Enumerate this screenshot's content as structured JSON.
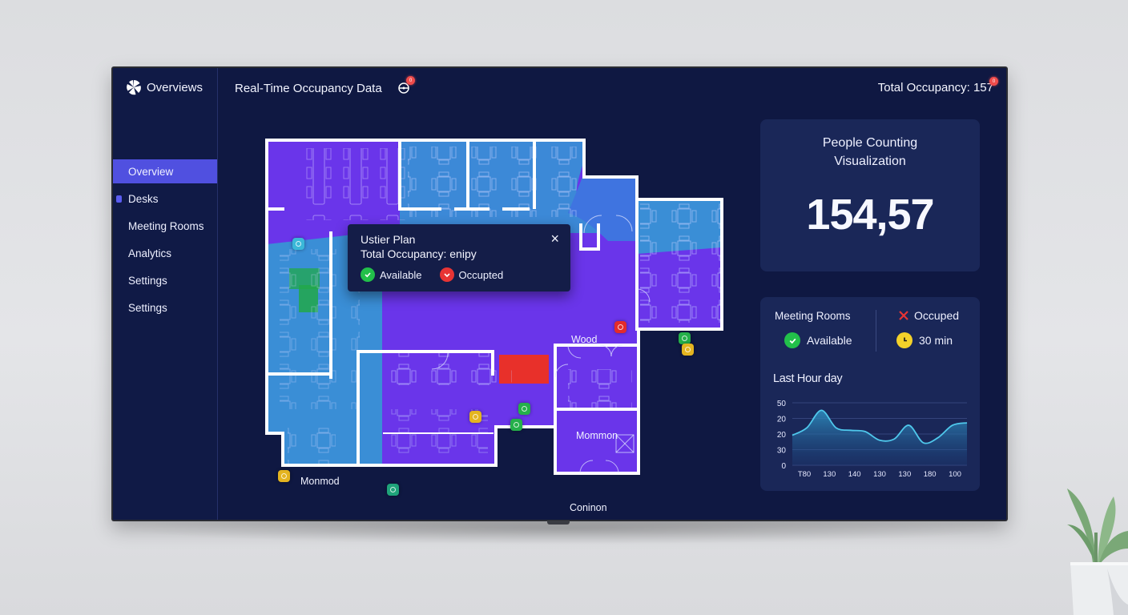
{
  "sidebar": {
    "brand": "Overviews",
    "brand_icon": "pinwheel-logo-icon",
    "items": [
      {
        "label": "Overview",
        "active": true
      },
      {
        "label": "Desks",
        "active": false,
        "marker": true
      },
      {
        "label": "Meeting Rooms",
        "active": false
      },
      {
        "label": "Analytics",
        "active": false
      },
      {
        "label": "Settings",
        "active": false
      },
      {
        "label": "Settings",
        "active": false
      }
    ]
  },
  "header": {
    "title": "Real-Time Occupancy Data",
    "icon": "target-icon",
    "notification_badge": "0",
    "total_occupancy": "Total Occupancy: 157",
    "total_badge": "0"
  },
  "floorplan": {
    "room_labels": [
      "Wood",
      "Mommon",
      "Monmod",
      "Coninon"
    ],
    "zone_colors": {
      "purple": "#6a35ea",
      "blue": "#3a8ed6",
      "red": "#e8302a",
      "green": "#22a84a"
    },
    "markers": [
      {
        "status": "teal",
        "color": "#3ab8d8"
      },
      {
        "status": "occupied",
        "color": "#e32b2b"
      },
      {
        "status": "reserved",
        "color": "#e4b420"
      },
      {
        "status": "occupied",
        "color": "#e32b2b"
      },
      {
        "status": "available",
        "color": "#25b04a"
      },
      {
        "status": "reserved",
        "color": "#e4b420"
      },
      {
        "status": "reserved",
        "color": "#e4b420"
      },
      {
        "status": "available",
        "color": "#25b04a"
      },
      {
        "status": "available",
        "color": "#25b04a"
      },
      {
        "status": "reserved",
        "color": "#e4b420"
      },
      {
        "status": "teal",
        "color": "#1fa37a"
      }
    ]
  },
  "popover": {
    "title": "Ustier Plan",
    "subtitle": "Total Occupancy: enipy",
    "close": "×",
    "legend": [
      {
        "label": "Available",
        "color": "#22c04a",
        "icon": "check-icon"
      },
      {
        "label": "Occupted",
        "color": "#e83434",
        "icon": "check-icon"
      }
    ]
  },
  "people_card": {
    "title_line1": "People Counting",
    "title_line2": "Visualization",
    "value": "154,57"
  },
  "stats_card": {
    "meeting_rooms_label": "Meeting Rooms",
    "available_label": "Available",
    "occupied_label": "Occuped",
    "time_label": "30 min",
    "chart_title": "Last Hour day"
  },
  "chart_data": {
    "type": "area",
    "title": "Last Hour day",
    "xlabel": "",
    "ylabel": "",
    "y_tick_labels": [
      "50",
      "20",
      "20",
      "30",
      "0"
    ],
    "x_tick_labels": [
      "T80",
      "130",
      "140",
      "130",
      "130",
      "180",
      "100"
    ],
    "x": [
      0,
      1,
      2,
      3,
      4,
      5,
      6,
      7,
      8,
      9,
      10,
      11,
      12
    ],
    "values": [
      24,
      30,
      44,
      30,
      28,
      27,
      20,
      21,
      32,
      18,
      22,
      32,
      34
    ],
    "ylim": [
      0,
      50
    ],
    "grid": true,
    "legend": "none",
    "line_color": "#4fc8ec"
  }
}
